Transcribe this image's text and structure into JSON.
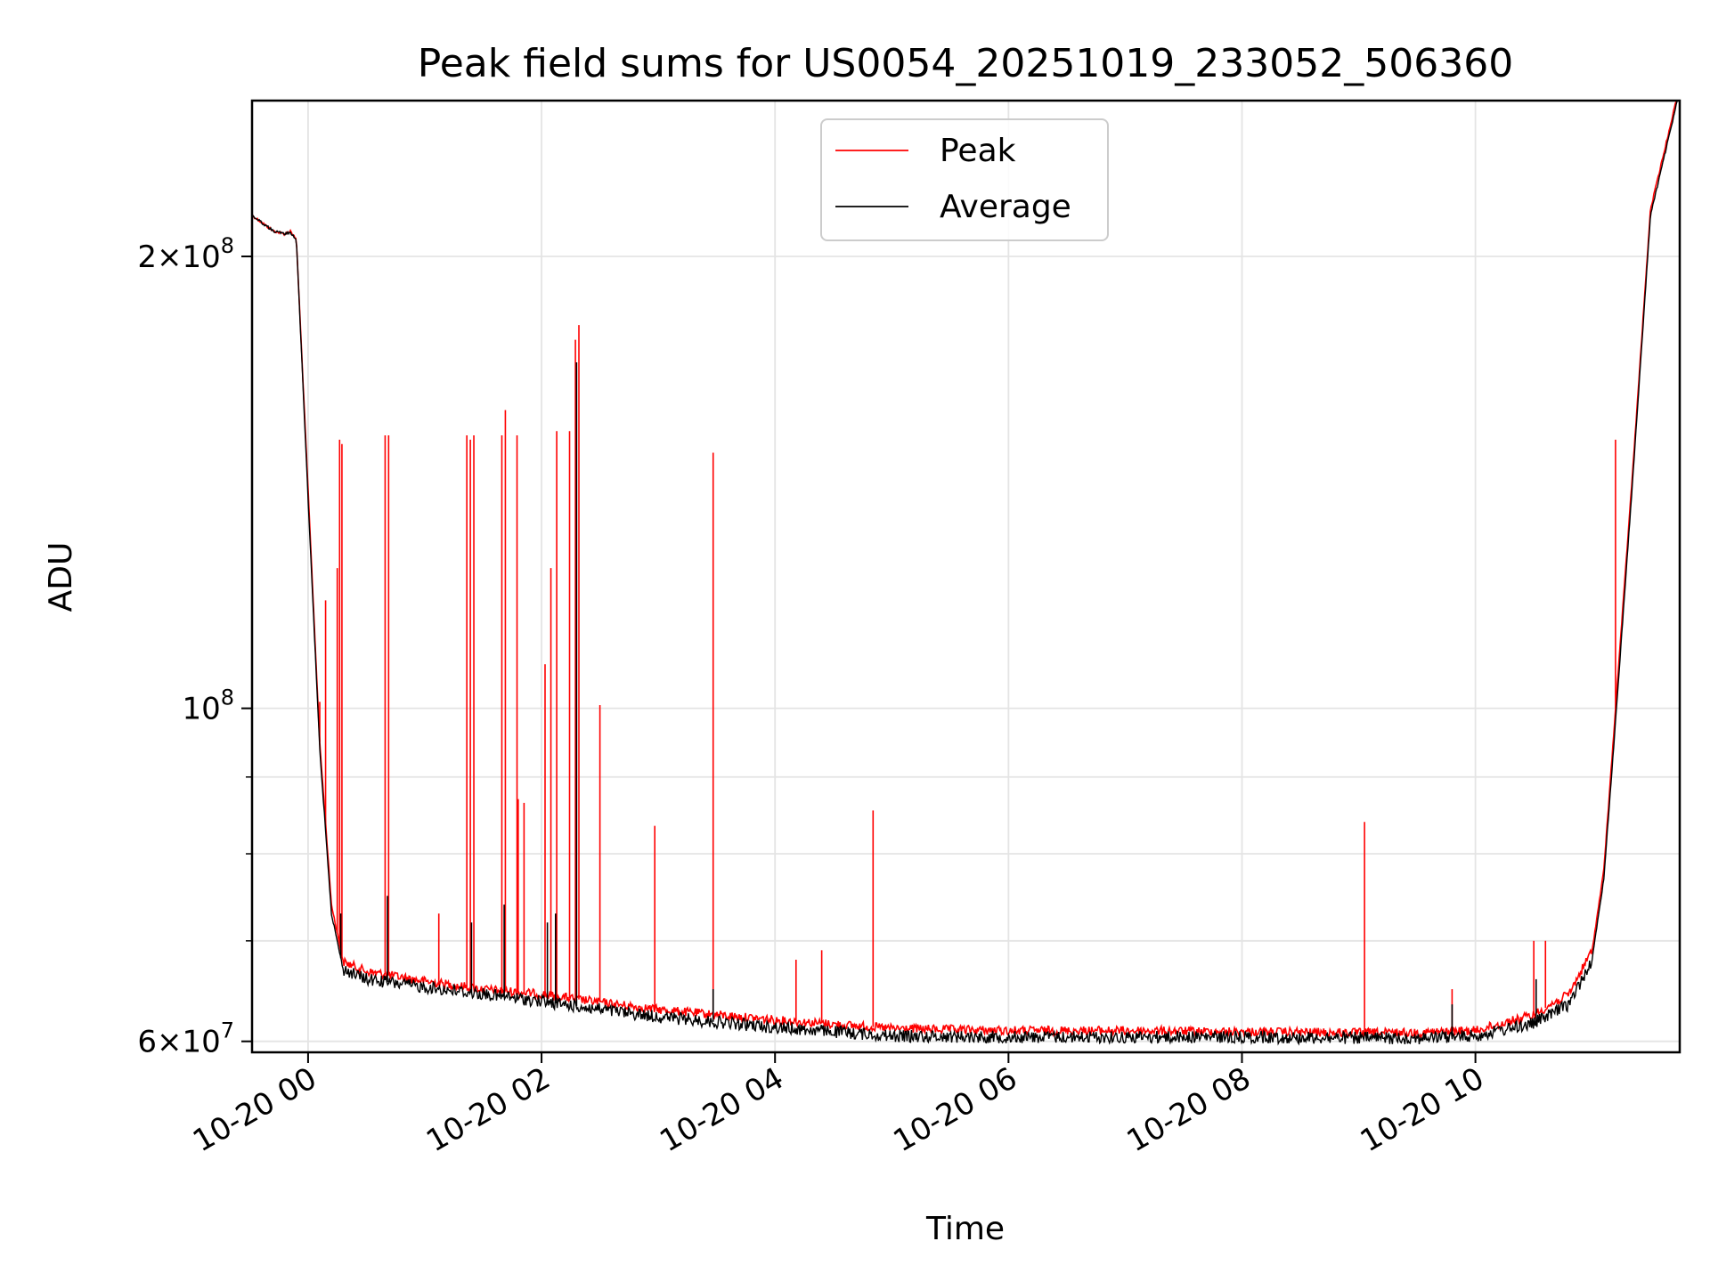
{
  "chart_data": {
    "type": "line",
    "title": "Peak field sums for US0054_20251019_233052_506360",
    "xlabel": "Time",
    "ylabel": "ADU",
    "y_scale": "log",
    "ylim": [
      59000000,
      254000000
    ],
    "xlim_hours": [
      -0.48,
      11.75
    ],
    "grid": true,
    "legend_position": "upper center",
    "x_ticks": [
      {
        "hour": 0,
        "label": "10-20 00"
      },
      {
        "hour": 2,
        "label": "10-20 02"
      },
      {
        "hour": 4,
        "label": "10-20 04"
      },
      {
        "hour": 6,
        "label": "10-20 06"
      },
      {
        "hour": 8,
        "label": "10-20 08"
      },
      {
        "hour": 10,
        "label": "10-20 10"
      }
    ],
    "y_major_ticks": [
      {
        "value": 60000000,
        "mantissa": "6",
        "exp": "7"
      },
      {
        "value": 100000000,
        "mantissa": "",
        "exp": "8"
      },
      {
        "value": 200000000,
        "mantissa": "2",
        "exp": "8"
      }
    ],
    "y_minor_ticks": [
      70000000,
      80000000,
      90000000
    ],
    "series": [
      {
        "name": "Peak",
        "color": "#ff0000",
        "hours": [
          -0.48,
          -0.3,
          -0.2,
          -0.15,
          -0.1,
          0.0,
          0.1,
          0.2,
          0.3,
          0.5,
          1.0,
          1.5,
          2.0,
          2.5,
          3.0,
          3.5,
          4.0,
          4.5,
          5.0,
          6.0,
          7.0,
          8.0,
          9.0,
          9.5,
          10.0,
          10.5,
          10.8,
          11.0,
          11.1,
          11.2,
          11.35,
          11.5,
          11.75
        ],
        "values": [
          213000000,
          208000000,
          207000000,
          208000000,
          205000000,
          140000000,
          95000000,
          74000000,
          67800000,
          66800000,
          65800000,
          65000000,
          64500000,
          63700000,
          63000000,
          62500000,
          62000000,
          61600000,
          61200000,
          61000000,
          61000000,
          60900000,
          60800000,
          60800000,
          61000000,
          62500000,
          64500000,
          69000000,
          78000000,
          100000000,
          145000000,
          215000000,
          260000000
        ],
        "spikes": [
          {
            "hour": 0.1,
            "value": 101000000
          },
          {
            "hour": 0.15,
            "value": 118000000
          },
          {
            "hour": 0.25,
            "value": 124000000
          },
          {
            "hour": 0.27,
            "value": 151000000
          },
          {
            "hour": 0.29,
            "value": 150000000
          },
          {
            "hour": 0.66,
            "value": 152000000
          },
          {
            "hour": 0.69,
            "value": 152000000
          },
          {
            "hour": 1.12,
            "value": 73000000
          },
          {
            "hour": 1.36,
            "value": 152000000
          },
          {
            "hour": 1.39,
            "value": 151000000
          },
          {
            "hour": 1.42,
            "value": 152000000
          },
          {
            "hour": 1.66,
            "value": 152000000
          },
          {
            "hour": 1.69,
            "value": 158000000
          },
          {
            "hour": 1.79,
            "value": 152000000
          },
          {
            "hour": 1.8,
            "value": 87000000
          },
          {
            "hour": 1.85,
            "value": 86500000
          },
          {
            "hour": 2.03,
            "value": 107000000
          },
          {
            "hour": 2.08,
            "value": 124000000
          },
          {
            "hour": 2.13,
            "value": 153000000
          },
          {
            "hour": 2.24,
            "value": 153000000
          },
          {
            "hour": 2.29,
            "value": 176000000
          },
          {
            "hour": 2.32,
            "value": 180000000
          },
          {
            "hour": 2.5,
            "value": 100500000
          },
          {
            "hour": 2.97,
            "value": 83500000
          },
          {
            "hour": 3.47,
            "value": 148000000
          },
          {
            "hour": 4.18,
            "value": 68000000
          },
          {
            "hour": 4.4,
            "value": 69000000
          },
          {
            "hour": 4.84,
            "value": 85500000
          },
          {
            "hour": 9.05,
            "value": 84000000
          },
          {
            "hour": 9.8,
            "value": 65000000
          },
          {
            "hour": 10.5,
            "value": 70000000
          },
          {
            "hour": 10.6,
            "value": 70000000
          },
          {
            "hour": 11.2,
            "value": 151000000
          }
        ]
      },
      {
        "name": "Average",
        "color": "#000000",
        "hours": [
          -0.48,
          -0.3,
          -0.2,
          -0.15,
          -0.1,
          0.0,
          0.1,
          0.2,
          0.3,
          0.5,
          1.0,
          1.5,
          2.0,
          2.5,
          3.0,
          3.5,
          4.0,
          4.5,
          5.0,
          6.0,
          7.0,
          8.0,
          9.0,
          9.5,
          10.0,
          10.5,
          10.8,
          11.0,
          11.1,
          11.2,
          11.35,
          11.5,
          11.75
        ],
        "values": [
          213000000,
          208000000,
          207000000,
          207500000,
          205000000,
          138000000,
          94000000,
          73000000,
          67000000,
          66000000,
          65200000,
          64500000,
          63800000,
          63000000,
          62300000,
          61800000,
          61300000,
          60900000,
          60500000,
          60400000,
          60400000,
          60400000,
          60300000,
          60300000,
          60500000,
          61700000,
          63500000,
          68000000,
          77000000,
          98000000,
          143000000,
          213000000,
          258000000
        ],
        "spikes": [
          {
            "hour": 0.28,
            "value": 73000000
          },
          {
            "hour": 0.68,
            "value": 75000000
          },
          {
            "hour": 1.4,
            "value": 72000000
          },
          {
            "hour": 1.68,
            "value": 74000000
          },
          {
            "hour": 2.05,
            "value": 72000000
          },
          {
            "hour": 2.12,
            "value": 73000000
          },
          {
            "hour": 2.3,
            "value": 170000000
          },
          {
            "hour": 3.47,
            "value": 65000000
          },
          {
            "hour": 9.8,
            "value": 63500000
          },
          {
            "hour": 10.52,
            "value": 66000000
          }
        ]
      }
    ],
    "legend": [
      {
        "label": "Peak",
        "color": "#ff0000"
      },
      {
        "label": "Average",
        "color": "#000000"
      }
    ]
  }
}
